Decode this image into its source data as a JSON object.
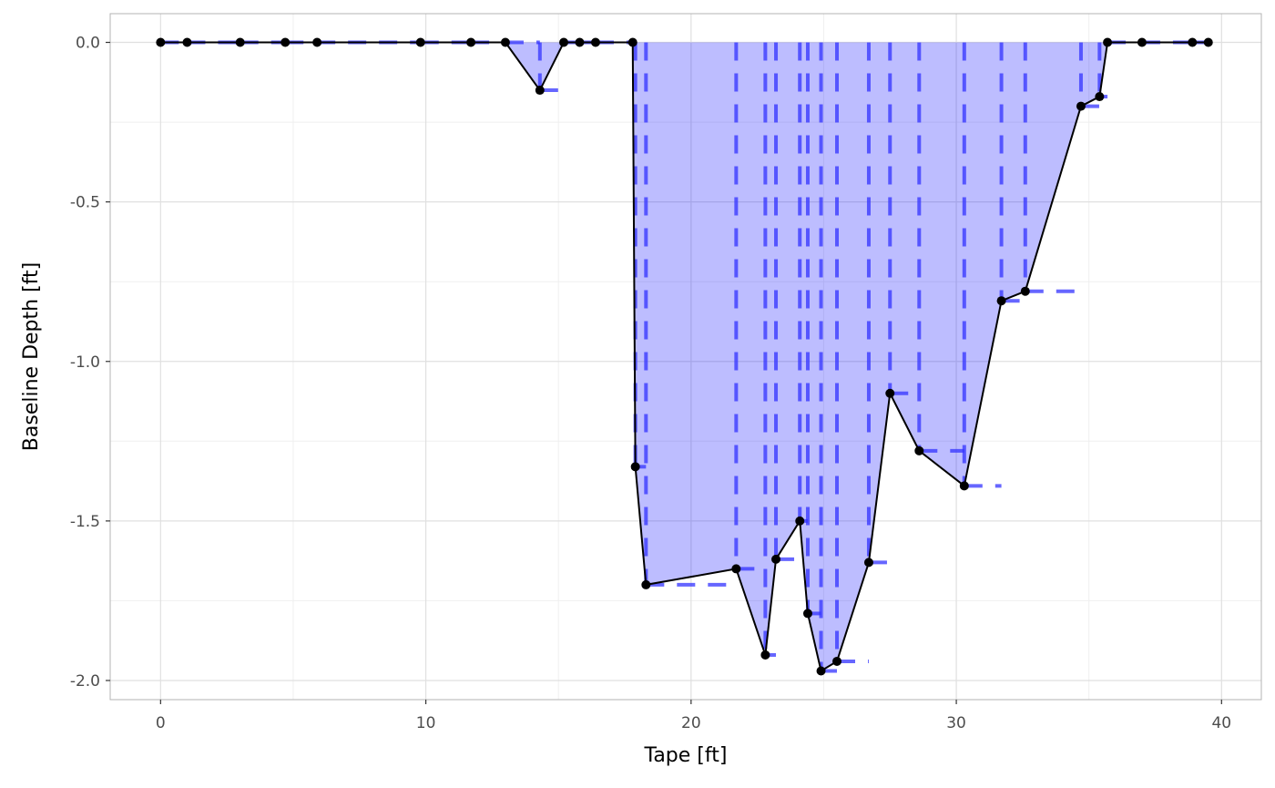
{
  "chart_data": {
    "type": "area",
    "xlabel": "Tape [ft]",
    "ylabel": "Baseline Depth [ft]",
    "xlim": [
      -1.9,
      41.5
    ],
    "ylim": [
      -2.06,
      0.09
    ],
    "x_ticks": [
      0,
      10,
      20,
      30,
      40
    ],
    "x_tick_labels": [
      "0",
      "10",
      "20",
      "30",
      "40"
    ],
    "y_ticks": [
      0.0,
      -0.5,
      -1.0,
      -1.5,
      -2.0
    ],
    "y_tick_labels": [
      "0.0",
      "-0.5",
      "-1.0",
      "-1.5",
      "-2.0"
    ],
    "grid": true,
    "legend": "none",
    "colors": {
      "fill": "#0000ff",
      "fill_opacity": 0.26,
      "dash": "#3333ff",
      "profile_line": "#000000",
      "points": "#000000",
      "panel_border": "#b3b3b3",
      "grid_major": "#e0e0e0",
      "grid_minor": "#efefef"
    },
    "series": [
      {
        "kind": "profile",
        "x": [
          0,
          1,
          3,
          4.7,
          5.9,
          9.8,
          11.7,
          13,
          14.3,
          15.2,
          15.8,
          16.4,
          17.8,
          17.9,
          18.3,
          21.7,
          22.8,
          23.2,
          24.1,
          24.4,
          24.9,
          25.5,
          26.7,
          27.5,
          28.6,
          30.3,
          31.7,
          32.6,
          34.7,
          35.4,
          35.7,
          37,
          38.9,
          39.5
        ],
        "y": [
          0,
          0,
          0,
          0,
          0,
          0,
          0,
          0,
          -0.15,
          0,
          0,
          0,
          0,
          -1.33,
          -1.7,
          -1.65,
          -1.92,
          -1.62,
          -1.5,
          -1.79,
          -1.97,
          -1.94,
          -1.63,
          -1.1,
          -1.28,
          -1.39,
          -0.81,
          -0.78,
          -0.2,
          -0.17,
          0,
          0,
          0,
          0
        ]
      }
    ]
  }
}
